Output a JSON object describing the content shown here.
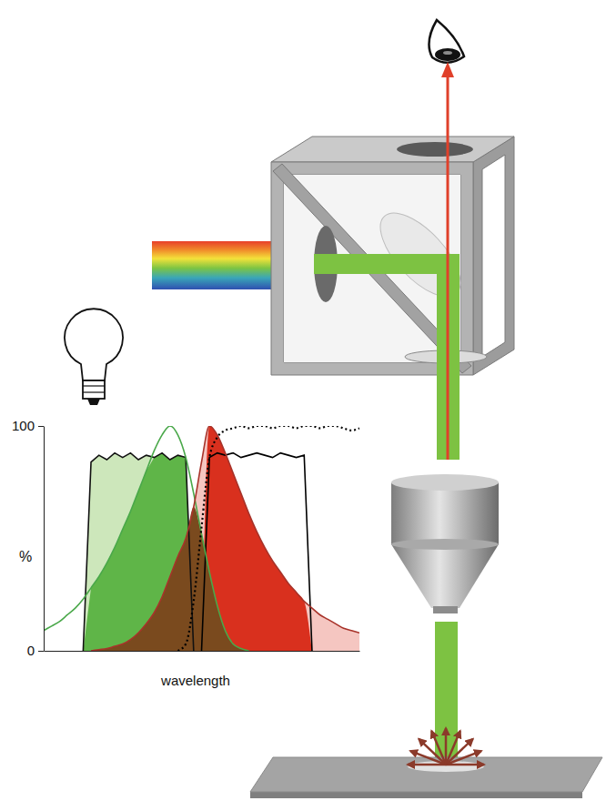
{
  "chart_data": {
    "type": "line",
    "xlabel": "wavelength",
    "ylabel": "%",
    "xlim": [
      0,
      100
    ],
    "ylim": [
      0,
      100
    ],
    "yticks": [
      0,
      100
    ],
    "tick_labels": "y",
    "x": [
      0,
      2.5,
      5,
      7.5,
      10,
      12.5,
      15,
      17.5,
      20,
      22.5,
      25,
      27.5,
      30,
      32.5,
      35,
      37.5,
      40,
      42.5,
      45,
      47.5,
      50,
      52.5,
      55,
      57.5,
      60,
      62.5,
      65,
      67.5,
      70,
      72.5,
      75,
      77.5,
      80,
      82.5,
      85,
      87.5,
      90,
      92.5,
      95,
      97.5,
      100
    ],
    "series": [
      {
        "type": "area",
        "color": "#cde7bb",
        "line_style": "solid",
        "values": [
          null,
          null,
          null,
          null,
          null,
          0,
          84,
          87,
          85,
          88,
          86,
          88,
          85,
          87,
          86,
          88,
          85,
          87,
          86,
          0,
          null,
          null,
          null,
          null,
          null,
          null,
          null,
          null,
          null,
          null,
          null,
          null,
          null,
          null,
          null,
          null,
          null,
          null,
          null,
          null,
          null
        ]
      },
      {
        "type": "line",
        "color": "#000000",
        "line_style": "solid",
        "values": [
          null,
          null,
          null,
          null,
          null,
          null,
          null,
          null,
          null,
          null,
          null,
          null,
          null,
          null,
          null,
          null,
          null,
          null,
          null,
          null,
          0,
          86,
          88,
          87,
          88,
          86,
          87,
          88,
          87,
          86,
          88,
          87,
          86,
          87,
          0,
          null,
          null,
          null,
          null,
          null,
          null
        ]
      },
      {
        "type": "line",
        "color": "#4aa84a",
        "line_style": "solid",
        "values": [
          9,
          11,
          13,
          16,
          19,
          23,
          28,
          33,
          39,
          46,
          54,
          62,
          71,
          80,
          89,
          96,
          100,
          96,
          86,
          70,
          52,
          35,
          20,
          9,
          3,
          1,
          0,
          null,
          null,
          null,
          null,
          null,
          null,
          null,
          null,
          null,
          null,
          null,
          null,
          null,
          null
        ]
      },
      {
        "type": "area",
        "color": "#f5c6c1",
        "line_style": "solid",
        "values": [
          null,
          null,
          null,
          null,
          null,
          null,
          0,
          0.5,
          1,
          2,
          3,
          5,
          8,
          12,
          17,
          24,
          33,
          42,
          50,
          64,
          84,
          100,
          96,
          88,
          79,
          70,
          61,
          53,
          46,
          40,
          35,
          30,
          26,
          22,
          19,
          16,
          14,
          12,
          10,
          9,
          8
        ]
      },
      {
        "type": "line",
        "color": "#000000",
        "line_style": "dotted",
        "values": [
          null,
          null,
          null,
          null,
          null,
          null,
          null,
          null,
          null,
          null,
          null,
          null,
          null,
          null,
          null,
          null,
          null,
          0,
          3,
          22,
          55,
          86,
          95,
          98,
          99,
          100,
          99,
          100,
          100,
          99,
          100,
          100,
          99,
          100,
          100,
          99,
          100,
          100,
          99,
          98,
          99
        ]
      }
    ]
  }
}
